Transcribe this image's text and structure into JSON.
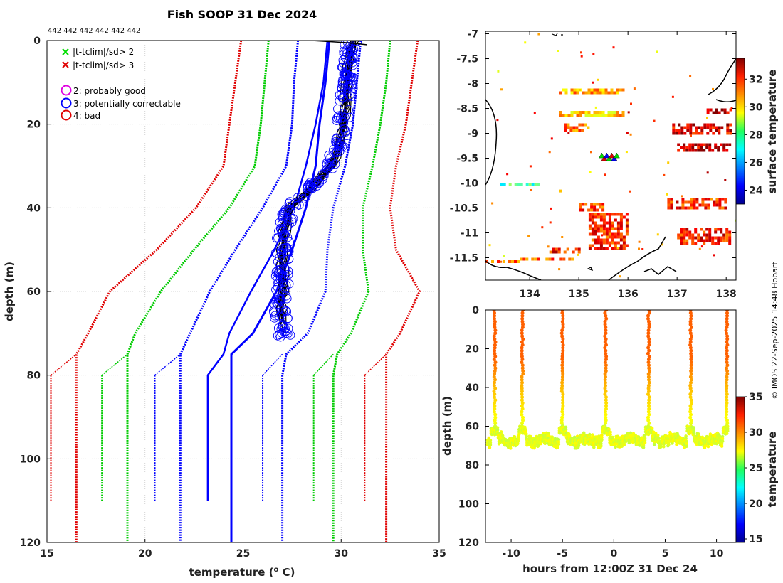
{
  "title": "Fish SOOP 31 Dec 2024",
  "copyright": "© IMOS 22-Sep-2025 14:48 Hobart",
  "profile_counts": "442 442 442 442 442 442",
  "colors": {
    "qc_red": "#e00000",
    "qc_green": "#00cc00",
    "qc_blue": "#0000ff",
    "qc_magenta": "#e000e0",
    "black": "#000000"
  },
  "legend": {
    "cross_items": [
      {
        "label": "|t-tclim|/sd> 2",
        "color": "#00dd00"
      },
      {
        "label": "|t-tclim|/sd> 3",
        "color": "#e00000"
      }
    ],
    "circle_items": [
      {
        "label": "2: probably good",
        "color": "#e000e0"
      },
      {
        "label": "3: potentially correctable",
        "color": "#0000ff"
      },
      {
        "label": "4: bad",
        "color": "#e00000"
      }
    ]
  },
  "chart_data": [
    {
      "type": "line",
      "panel": "profile",
      "xlabel": "temperature (",
      "xlabel_sup": "o",
      "xlabel_end": " C)",
      "ylabel": "depth (m)",
      "xlim": [
        15,
        35
      ],
      "ylim": [
        120,
        0
      ],
      "xticks": [
        15,
        20,
        25,
        30,
        35
      ],
      "yticks": [
        0,
        20,
        40,
        60,
        80,
        100,
        120
      ],
      "grid": true,
      "climatology": [
        {
          "name": "clim -3sd",
          "color": "#e00000",
          "depths": [
            0,
            10,
            20,
            30,
            40,
            50,
            60,
            70,
            75,
            80,
            120
          ],
          "temps": [
            24.9,
            24.6,
            24.3,
            24.0,
            22.6,
            20.6,
            18.2,
            17.1,
            16.5,
            16.5,
            16.5
          ]
        },
        {
          "name": "clim -2sd",
          "color": "#00cc00",
          "depths": [
            0,
            10,
            20,
            30,
            40,
            50,
            60,
            70,
            75,
            80,
            120
          ],
          "temps": [
            26.3,
            26.1,
            25.9,
            25.6,
            24.3,
            22.5,
            20.8,
            19.5,
            19.1,
            19.1,
            19.1
          ]
        },
        {
          "name": "clim -1sd",
          "color": "#0000ff",
          "depths": [
            0,
            10,
            20,
            30,
            40,
            50,
            60,
            70,
            75,
            80,
            120
          ],
          "temps": [
            27.8,
            27.6,
            27.5,
            27.2,
            26.0,
            24.6,
            23.3,
            22.3,
            21.8,
            21.8,
            21.8
          ]
        },
        {
          "name": "clim mean",
          "color": "#0000ff",
          "depths": [
            0,
            5,
            10,
            20,
            30,
            40,
            50,
            60,
            70,
            75,
            80,
            120
          ],
          "temps": [
            29.4,
            29.3,
            29.2,
            28.9,
            28.7,
            28.2,
            27.5,
            26.7,
            25.5,
            24.4,
            24.4,
            24.4
          ]
        },
        {
          "name": "clim +1sd",
          "color": "#0000ff",
          "depths": [
            0,
            10,
            20,
            30,
            40,
            50,
            60,
            70,
            75,
            80,
            120
          ],
          "temps": [
            31.0,
            30.8,
            30.6,
            30.2,
            29.6,
            29.3,
            29.2,
            28.3,
            27.2,
            27.0,
            27.0
          ]
        },
        {
          "name": "clim +2sd",
          "color": "#00cc00",
          "depths": [
            0,
            10,
            20,
            30,
            40,
            50,
            60,
            70,
            75,
            80,
            120
          ],
          "temps": [
            32.5,
            32.3,
            32.0,
            31.6,
            31.1,
            31.1,
            31.4,
            30.5,
            29.8,
            29.6,
            29.6
          ]
        },
        {
          "name": "clim +3sd",
          "color": "#e00000",
          "depths": [
            0,
            10,
            20,
            30,
            40,
            50,
            60,
            70,
            75,
            80,
            120
          ],
          "temps": [
            33.9,
            33.6,
            33.3,
            32.8,
            32.5,
            32.8,
            34.0,
            33.0,
            32.3,
            32.3,
            32.3
          ]
        }
      ],
      "short_profiles": [
        {
          "name": "short clim set",
          "dash": true,
          "colors": [
            "#e00000",
            "#00cc00",
            "#0000ff",
            "#0000ff",
            "#00cc00",
            "#e00000"
          ],
          "depth_range": [
            80,
            110
          ],
          "temps": [
            15.2,
            17.8,
            20.5,
            26.0,
            28.6,
            31.2
          ]
        },
        {
          "name": "short mean",
          "color": "#0000ff",
          "depths": [
            0,
            10,
            20,
            30,
            40,
            50,
            60,
            70,
            75,
            80,
            110
          ],
          "temps": [
            29.3,
            29.1,
            28.7,
            28.2,
            27.6,
            26.6,
            25.4,
            24.3,
            24.0,
            23.2,
            23.2
          ]
        }
      ],
      "observed_profile": {
        "color": "#000000",
        "depths": [
          0,
          1,
          5,
          10,
          15,
          20,
          25,
          30,
          35,
          40,
          45,
          50,
          55,
          60,
          65,
          70
        ],
        "temps": [
          30.6,
          30.5,
          30.4,
          30.3,
          30.2,
          30.1,
          29.9,
          29.5,
          28.5,
          27.4,
          27.1,
          27.0,
          27.0,
          27.0,
          26.9,
          27.1
        ]
      },
      "surface_line": {
        "x": [
          28.5,
          31.3
        ],
        "depths": [
          0,
          1
        ]
      }
    },
    {
      "type": "heatmap",
      "panel": "map",
      "xlim": [
        133.1,
        138.2
      ],
      "ylim": [
        -11.95,
        -6.95
      ],
      "xticks": [
        134,
        135,
        136,
        137,
        138
      ],
      "yticks": [
        -7,
        -7.5,
        -8,
        -8.5,
        -9,
        -9.5,
        -10,
        -10.5,
        -11,
        -11.5
      ],
      "ytick_labels": [
        "-7",
        "-7.5",
        "-8",
        "-8.5",
        "-9",
        "-9.5",
        "-10",
        "-10.5",
        "-11",
        "-11.5"
      ],
      "colorbar_label": "surface temperature",
      "colorbar_range": [
        23,
        33.5
      ],
      "colorbar_ticks": [
        24,
        26,
        28,
        30,
        32
      ],
      "ship_track_center": {
        "lon": 135.62,
        "lat": -9.48
      },
      "sst_patches": [
        {
          "lon": [
            134.6,
            135.9
          ],
          "lat": [
            -8.1,
            -8.2
          ],
          "value": 30.5
        },
        {
          "lon": [
            134.6,
            135.9
          ],
          "lat": [
            -8.55,
            -8.65
          ],
          "value": 30.2
        },
        {
          "lon": [
            134.7,
            135.2
          ],
          "lat": [
            -8.8,
            -8.95
          ],
          "value": 31
        },
        {
          "lon": [
            136.9,
            138.1
          ],
          "lat": [
            -8.8,
            -9.0
          ],
          "value": 32.5
        },
        {
          "lon": [
            137.0,
            138.1
          ],
          "lat": [
            -9.2,
            -9.35
          ],
          "value": 32.8
        },
        {
          "lon": [
            137.6,
            138.1
          ],
          "lat": [
            -8.5,
            -8.6
          ],
          "value": 32.5
        },
        {
          "lon": [
            136.8,
            138.0
          ],
          "lat": [
            -10.3,
            -10.5
          ],
          "value": 31.8
        },
        {
          "lon": [
            135.0,
            135.5
          ],
          "lat": [
            -10.4,
            -10.55
          ],
          "value": 31.5
        },
        {
          "lon": [
            135.2,
            136.0
          ],
          "lat": [
            -10.6,
            -11.3
          ],
          "value": 31.8
        },
        {
          "lon": [
            137.0,
            138.1
          ],
          "lat": [
            -10.9,
            -11.2
          ],
          "value": 32.0
        },
        {
          "lon": [
            134.4,
            135.0
          ],
          "lat": [
            -11.3,
            -11.4
          ],
          "value": 32.0
        },
        {
          "lon": [
            133.8,
            134.9
          ],
          "lat": [
            -11.5,
            -11.55
          ],
          "value": 31.5
        },
        {
          "lon": [
            133.1,
            133.8
          ],
          "lat": [
            -11.55,
            -11.6
          ],
          "value": 31.0
        },
        {
          "lon": [
            133.4,
            134.2
          ],
          "lat": [
            -10.0,
            -10.05
          ],
          "value": 27.5
        },
        {
          "lon": [
            134.6,
            134.9
          ],
          "lat": [
            -10.13,
            -10.17
          ],
          "value": 29.0
        }
      ]
    },
    {
      "type": "scatter",
      "panel": "time-depth",
      "xlabel": "hours from 12:00Z 31 Dec 24",
      "ylabel": "depth (m)",
      "xlim": [
        -12.5,
        11.9
      ],
      "ylim": [
        120,
        0
      ],
      "xticks": [
        -10,
        -5,
        0,
        5,
        10
      ],
      "yticks": [
        0,
        20,
        40,
        60,
        80,
        100,
        120
      ],
      "colorbar_label": "temperature",
      "colorbar_range": [
        14.5,
        35
      ],
      "colorbar_ticks": [
        15,
        20,
        25,
        30,
        35
      ],
      "profile_times_hours": [
        -11.6,
        -8.9,
        -5.0,
        -0.8,
        3.4,
        7.5,
        11.0
      ],
      "surface_temperature": 30.5,
      "bottom_depth_range": [
        62,
        70
      ],
      "bottom_temperature": 26.5
    }
  ]
}
